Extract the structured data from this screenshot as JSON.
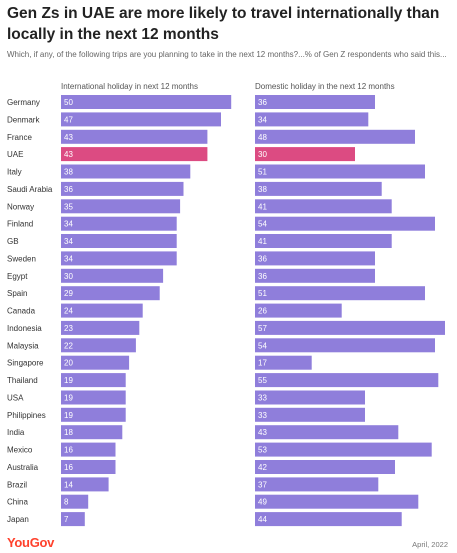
{
  "header": {
    "title": "Gen Zs in UAE are more likely to travel internationally than locally in the next 12 months",
    "subtitle": "Which, if any, of the following trips are you planning to take in the next 12 months?...% of Gen Z respondents who said this..."
  },
  "footer": {
    "brand": "YouGov",
    "date": "April, 2022"
  },
  "colors": {
    "bar": "#8f7edb",
    "highlight": "#dc4b82",
    "bar_label": "#ffffff",
    "category_label": "#333333"
  },
  "chart_data": {
    "type": "bar",
    "orientation": "horizontal",
    "highlight_category": "UAE",
    "categories": [
      "Germany",
      "Denmark",
      "France",
      "UAE",
      "Italy",
      "Saudi Arabia",
      "Norway",
      "Finland",
      "GB",
      "Sweden",
      "Egypt",
      "Spain",
      "Canada",
      "Indonesia",
      "Malaysia",
      "Singapore",
      "Thailand",
      "USA",
      "Philippines",
      "India",
      "Mexico",
      "Australia",
      "Brazil",
      "China",
      "Japan"
    ],
    "series": [
      {
        "name": "International holiday in next 12 months",
        "values": [
          50,
          47,
          43,
          43,
          38,
          36,
          35,
          34,
          34,
          34,
          30,
          29,
          24,
          23,
          22,
          20,
          19,
          19,
          19,
          18,
          16,
          16,
          14,
          8,
          7
        ]
      },
      {
        "name": "Domestic holiday in the next 12 months",
        "values": [
          36,
          34,
          48,
          30,
          51,
          38,
          41,
          54,
          41,
          36,
          36,
          51,
          26,
          57,
          54,
          17,
          55,
          33,
          33,
          43,
          53,
          42,
          37,
          49,
          44
        ]
      }
    ],
    "xlim": [
      0,
      57
    ],
    "grid": false,
    "legend": "none"
  }
}
